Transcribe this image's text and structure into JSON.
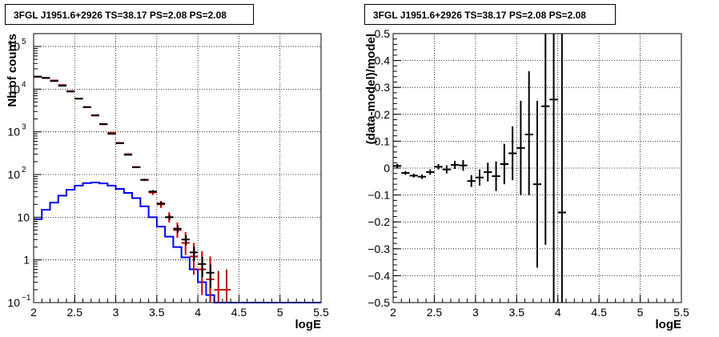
{
  "chart_data": [
    {
      "type": "histogram",
      "title": "3FGL J1951.6+2926 TS=38.17 PS=2.08 PS=2.08",
      "xlabel": "logE",
      "ylabel": "Nb of counts",
      "xlim": [
        2,
        5.5
      ],
      "ylim": [
        0.1,
        200000
      ],
      "yscale": "log",
      "grid": true,
      "x_ticks": [
        "2",
        "2.5",
        "3",
        "3.5",
        "4",
        "4.5",
        "5",
        "5.5"
      ],
      "y_ticks": [
        {
          "v": 0.1,
          "b": "10",
          "e": "−1"
        },
        {
          "v": 1,
          "b": "1",
          "e": ""
        },
        {
          "v": 10,
          "b": "10",
          "e": ""
        },
        {
          "v": 100,
          "b": "10",
          "e": "2"
        },
        {
          "v": 1000,
          "b": "10",
          "e": "3"
        },
        {
          "v": 10000,
          "b": "10",
          "e": "4"
        },
        {
          "v": 100000,
          "b": "10",
          "e": "5"
        }
      ],
      "series": [
        {
          "color": "#0000ff",
          "style": "step",
          "bin_edges": [
            2.0,
            2.1,
            2.2,
            2.3,
            2.4,
            2.5,
            2.6,
            2.7,
            2.8,
            2.9,
            3.0,
            3.1,
            3.2,
            3.3,
            3.4,
            3.5,
            3.6,
            3.7,
            3.8,
            3.9,
            4.0,
            4.1,
            4.2,
            4.3,
            4.4,
            4.5,
            4.6,
            4.7,
            4.8,
            4.9,
            5.0,
            5.1,
            5.2,
            5.3,
            5.4,
            5.5
          ],
          "values": [
            9,
            15,
            22,
            32,
            44,
            55,
            63,
            65,
            62,
            55,
            46,
            37,
            28,
            18,
            10,
            6,
            3.5,
            2,
            1.15,
            0.6,
            0.3,
            0.15,
            0.1,
            0.1,
            0.1,
            0.1,
            0.1,
            0.1,
            0.1,
            0.1,
            0.1,
            0.1,
            0.1,
            0.1,
            0.1
          ]
        },
        {
          "color": "#cc0000",
          "style": "errorbar",
          "x": [
            2.05,
            2.15,
            2.25,
            2.35,
            2.45,
            2.55,
            2.65,
            2.75,
            2.85,
            2.95,
            3.05,
            3.15,
            3.25,
            3.35,
            3.45,
            3.55,
            3.65,
            3.75,
            3.85,
            3.95,
            4.05,
            4.15,
            4.25,
            4.35
          ],
          "y": [
            19500,
            18500,
            16000,
            12500,
            9000,
            6000,
            3800,
            2400,
            1500,
            950,
            550,
            300,
            150,
            75,
            38,
            20,
            10,
            5,
            2.5,
            1.2,
            0.6,
            0.35,
            0.2,
            0.2
          ],
          "ylo": [
            19200,
            18200,
            15700,
            12200,
            8800,
            5850,
            3700,
            2330,
            1450,
            920,
            530,
            288,
            143,
            70,
            33,
            16.5,
            7.5,
            3.3,
            1.3,
            0.45,
            0.15,
            0.1,
            0.1,
            0.1
          ],
          "yhi": [
            19800,
            18800,
            16300,
            12800,
            9200,
            6150,
            3900,
            2470,
            1550,
            980,
            570,
            312,
            157,
            80,
            43,
            24,
            13,
            7.5,
            4.5,
            2.5,
            1.6,
            1.2,
            0.55,
            0.6
          ]
        },
        {
          "color": "#000000",
          "style": "errorbar",
          "x": [
            2.05,
            2.15,
            2.25,
            2.35,
            2.45,
            2.55,
            2.65,
            2.75,
            2.85,
            2.95,
            3.05,
            3.15,
            3.25,
            3.35,
            3.45,
            3.55,
            3.65,
            3.75,
            3.85,
            3.95,
            4.05,
            4.15
          ],
          "y": [
            19700,
            18200,
            15500,
            12000,
            8800,
            6000,
            3800,
            2450,
            1520,
            900,
            540,
            290,
            148,
            75,
            40,
            21,
            10,
            5.4,
            3.0,
            1.5,
            0.8,
            0.5
          ],
          "ylo": [
            19500,
            18000,
            15300,
            11800,
            8600,
            5850,
            3700,
            2400,
            1480,
            880,
            525,
            282,
            143,
            72,
            37,
            19,
            8.7,
            4.3,
            2.2,
            0.95,
            0.4,
            0.22
          ],
          "yhi": [
            19900,
            18400,
            15700,
            12200,
            9000,
            6150,
            3900,
            2500,
            1560,
            920,
            555,
            298,
            153,
            78,
            43,
            23,
            11.3,
            6.5,
            3.8,
            2.05,
            1.2,
            0.78
          ]
        }
      ]
    },
    {
      "type": "scatter",
      "title": "3FGL J1951.6+2926 TS=38.17 PS=2.08 PS=2.08",
      "xlabel": "logE",
      "ylabel": "(data-model)/model",
      "xlim": [
        2,
        5.5
      ],
      "ylim": [
        -0.5,
        0.5
      ],
      "grid": true,
      "x_ticks": [
        "2",
        "2.5",
        "3",
        "3.5",
        "4",
        "4.5",
        "5",
        "5.5"
      ],
      "y_ticks": [
        "0.5",
        "0.4",
        "0.3",
        "0.2",
        "0.1",
        "0",
        "−0.1",
        "−0.2",
        "−0.3",
        "−0.4",
        "−0.5"
      ],
      "series": [
        {
          "color": "#000000",
          "x": [
            2.05,
            2.15,
            2.25,
            2.35,
            2.45,
            2.55,
            2.65,
            2.75,
            2.85,
            2.95,
            3.05,
            3.15,
            3.25,
            3.35,
            3.45,
            3.55,
            3.65,
            3.75,
            3.85,
            3.95,
            4.05
          ],
          "y": [
            0.008,
            -0.018,
            -0.028,
            -0.032,
            -0.015,
            0.005,
            -0.005,
            0.012,
            0.01,
            -0.048,
            -0.035,
            -0.015,
            -0.03,
            0.015,
            0.055,
            0.075,
            0.125,
            -0.06,
            0.23,
            0.255,
            -0.165
          ],
          "ylo": [
            0.0,
            -0.025,
            -0.035,
            -0.04,
            -0.025,
            -0.005,
            -0.02,
            -0.003,
            -0.01,
            -0.07,
            -0.065,
            -0.05,
            -0.085,
            -0.06,
            -0.045,
            -0.1,
            -0.1,
            -0.37,
            -0.285,
            -0.5,
            -0.5
          ],
          "yhi": [
            0.016,
            -0.011,
            -0.021,
            -0.024,
            -0.005,
            0.015,
            0.01,
            0.027,
            0.03,
            -0.026,
            -0.005,
            0.02,
            0.025,
            0.09,
            0.155,
            0.25,
            0.36,
            0.25,
            0.5,
            0.5,
            0.5
          ]
        }
      ]
    }
  ]
}
